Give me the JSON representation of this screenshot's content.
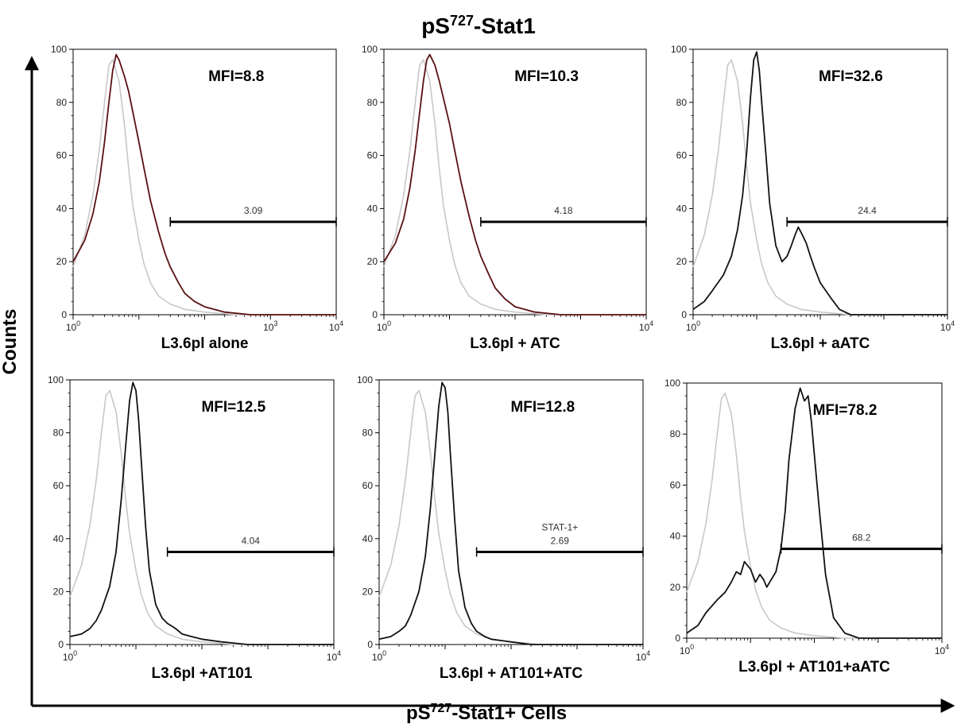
{
  "figure": {
    "title": "pS",
    "title_sup": "727",
    "title_suffix": "-Stat1",
    "y_label": "Counts",
    "x_label": "pS",
    "x_label_sup": "727",
    "x_label_suffix": "-Stat1+ Cells"
  },
  "colors": {
    "control": "#c8c8c8",
    "sample_dark_red": "#5a1010",
    "sample_black": "#111111",
    "gate": "#000000"
  },
  "chart_data": [
    {
      "type": "line",
      "panel_label": "L3.6pl alone",
      "mfi": "MFI=8.8",
      "gate": {
        "label": "3.09",
        "from": 30,
        "to": 10000,
        "y": 35
      },
      "sample_color": "dark-red",
      "x_scale": "log",
      "xlim": [
        1,
        10000
      ],
      "ylim": [
        0,
        100
      ],
      "x_ticks": [
        "10^0",
        "10^3",
        "10^4"
      ],
      "y_ticks": [
        0,
        20,
        40,
        60,
        80,
        100
      ],
      "series": [
        {
          "role": "control",
          "x": [
            1,
            1.5,
            2,
            2.5,
            3,
            3.5,
            4,
            5,
            6,
            7,
            8,
            10,
            12,
            15,
            20,
            30,
            50,
            100,
            300,
            1000,
            10000
          ],
          "y": [
            18,
            30,
            45,
            62,
            80,
            94,
            96,
            88,
            72,
            55,
            42,
            28,
            19,
            12,
            7,
            4,
            2,
            1,
            0,
            0,
            0
          ]
        },
        {
          "role": "sample",
          "x": [
            1,
            1.5,
            2,
            2.5,
            3,
            3.5,
            4,
            4.5,
            5,
            6,
            7,
            8,
            10,
            12,
            15,
            20,
            25,
            30,
            40,
            50,
            70,
            100,
            200,
            500,
            1000,
            10000
          ],
          "y": [
            20,
            28,
            38,
            50,
            65,
            80,
            92,
            98,
            96,
            90,
            84,
            77,
            65,
            55,
            43,
            31,
            23,
            18,
            12,
            8,
            5,
            3,
            1,
            0,
            0,
            0
          ]
        }
      ]
    },
    {
      "type": "line",
      "panel_label": "L3.6pl + ATC",
      "mfi": "MFI=10.3",
      "gate": {
        "label": "4.18",
        "from": 30,
        "to": 10000,
        "y": 35
      },
      "sample_color": "dark-red",
      "x_scale": "log",
      "xlim": [
        1,
        10000
      ],
      "ylim": [
        0,
        100
      ],
      "x_ticks": [
        "10^0",
        "10^4"
      ],
      "y_ticks": [
        0,
        20,
        40,
        60,
        80,
        100
      ],
      "series": [
        {
          "role": "control",
          "x": [
            1,
            1.5,
            2,
            2.5,
            3,
            3.5,
            4,
            5,
            6,
            7,
            8,
            10,
            12,
            15,
            20,
            30,
            50,
            100,
            300,
            1000,
            10000
          ],
          "y": [
            18,
            30,
            45,
            62,
            80,
            94,
            96,
            88,
            72,
            55,
            42,
            28,
            19,
            12,
            7,
            4,
            2,
            1,
            0,
            0,
            0
          ]
        },
        {
          "role": "sample",
          "x": [
            1,
            1.5,
            2,
            2.5,
            3,
            3.5,
            4,
            4.5,
            5,
            6,
            7,
            8,
            10,
            12,
            15,
            20,
            25,
            30,
            40,
            50,
            70,
            100,
            200,
            500,
            1000,
            10000
          ],
          "y": [
            20,
            27,
            36,
            48,
            62,
            76,
            88,
            96,
            98,
            94,
            88,
            82,
            72,
            62,
            50,
            37,
            28,
            22,
            15,
            10,
            6,
            3,
            1,
            0,
            0,
            0
          ]
        }
      ]
    },
    {
      "type": "line",
      "panel_label": "L3.6pl + aATC",
      "mfi": "MFI=32.6",
      "gate": {
        "label": "24.4",
        "from": 30,
        "to": 10000,
        "y": 35
      },
      "sample_color": "black",
      "x_scale": "log",
      "xlim": [
        1,
        10000
      ],
      "ylim": [
        0,
        100
      ],
      "x_ticks": [
        "10^0",
        "10^4"
      ],
      "y_ticks": [
        0,
        20,
        40,
        60,
        80,
        100
      ],
      "series": [
        {
          "role": "control",
          "x": [
            1,
            1.5,
            2,
            2.5,
            3,
            3.5,
            4,
            5,
            6,
            7,
            8,
            10,
            12,
            15,
            20,
            30,
            50,
            100,
            300,
            1000,
            10000
          ],
          "y": [
            18,
            30,
            45,
            62,
            80,
            94,
            96,
            88,
            72,
            55,
            42,
            28,
            19,
            12,
            7,
            4,
            2,
            1,
            0,
            0,
            0
          ]
        },
        {
          "role": "sample",
          "x": [
            1,
            1.5,
            2,
            3,
            4,
            5,
            6,
            7,
            8,
            9,
            10,
            11,
            12,
            14,
            16,
            20,
            25,
            30,
            35,
            40,
            45,
            50,
            60,
            70,
            80,
            100,
            150,
            200,
            300,
            1000,
            10000
          ],
          "y": [
            2,
            5,
            9,
            15,
            22,
            32,
            45,
            62,
            82,
            96,
            99,
            92,
            80,
            60,
            42,
            26,
            20,
            22,
            26,
            30,
            33,
            31,
            27,
            22,
            18,
            12,
            6,
            2,
            0,
            0,
            0
          ]
        }
      ]
    },
    {
      "type": "line",
      "panel_label": "L3.6pl +AT101",
      "mfi": "MFI=12.5",
      "gate": {
        "label": "4.04",
        "from": 30,
        "to": 10000,
        "y": 35
      },
      "sample_color": "black",
      "x_scale": "log",
      "xlim": [
        1,
        10000
      ],
      "ylim": [
        0,
        100
      ],
      "x_ticks": [
        "10^0",
        "10^4"
      ],
      "y_ticks": [
        0,
        20,
        40,
        60,
        80,
        100
      ],
      "series": [
        {
          "role": "control",
          "x": [
            1,
            1.5,
            2,
            2.5,
            3,
            3.5,
            4,
            5,
            6,
            7,
            8,
            10,
            12,
            15,
            20,
            30,
            50,
            100,
            300,
            1000,
            10000
          ],
          "y": [
            18,
            30,
            45,
            62,
            80,
            94,
            96,
            88,
            72,
            55,
            42,
            28,
            19,
            12,
            7,
            4,
            2,
            1,
            0,
            0,
            0
          ]
        },
        {
          "role": "sample",
          "x": [
            1,
            1.5,
            2,
            2.5,
            3,
            4,
            5,
            6,
            7,
            8,
            9,
            10,
            11,
            12,
            14,
            16,
            20,
            25,
            30,
            40,
            50,
            70,
            100,
            200,
            500,
            1000,
            10000
          ],
          "y": [
            3,
            4,
            6,
            9,
            13,
            22,
            35,
            55,
            75,
            92,
            99,
            96,
            85,
            70,
            45,
            28,
            15,
            10,
            8,
            6,
            4,
            3,
            2,
            1,
            0,
            0,
            0
          ]
        }
      ]
    },
    {
      "type": "line",
      "panel_label": "L3.6pl + AT101+ATC",
      "mfi": "MFI=12.8",
      "gate": {
        "label": "2.69",
        "label_top": "STAT-1+",
        "from": 30,
        "to": 10000,
        "y": 35
      },
      "sample_color": "black",
      "x_scale": "log",
      "xlim": [
        1,
        10000
      ],
      "ylim": [
        0,
        100
      ],
      "x_ticks": [
        "10^0",
        "10^4"
      ],
      "y_ticks": [
        0,
        20,
        40,
        60,
        80,
        100
      ],
      "series": [
        {
          "role": "control",
          "x": [
            1,
            1.5,
            2,
            2.5,
            3,
            3.5,
            4,
            5,
            6,
            7,
            8,
            10,
            12,
            15,
            20,
            30,
            50,
            100,
            300,
            1000,
            10000
          ],
          "y": [
            18,
            30,
            45,
            62,
            80,
            94,
            96,
            88,
            72,
            55,
            42,
            28,
            19,
            12,
            7,
            4,
            2,
            1,
            0,
            0,
            0
          ]
        },
        {
          "role": "sample",
          "x": [
            1,
            1.5,
            2,
            2.5,
            3,
            4,
            5,
            6,
            7,
            8,
            9,
            10,
            11,
            12,
            14,
            16,
            20,
            25,
            30,
            40,
            50,
            100,
            200,
            1000,
            10000
          ],
          "y": [
            2,
            3,
            5,
            7,
            11,
            20,
            33,
            52,
            72,
            90,
            99,
            97,
            88,
            72,
            47,
            28,
            14,
            8,
            5,
            3,
            2,
            1,
            0,
            0,
            0
          ]
        }
      ]
    },
    {
      "type": "line",
      "panel_label": "L3.6pl + AT101+aATC",
      "mfi": "MFI=78.2",
      "gate": {
        "label": "68.2",
        "from": 30,
        "to": 10000,
        "y": 35
      },
      "sample_color": "black",
      "x_scale": "log",
      "xlim": [
        1,
        10000
      ],
      "ylim": [
        0,
        100
      ],
      "x_ticks": [
        "10^0",
        "10^4"
      ],
      "y_ticks": [
        0,
        20,
        40,
        60,
        80,
        100
      ],
      "series": [
        {
          "role": "control",
          "x": [
            1,
            1.5,
            2,
            2.5,
            3,
            3.5,
            4,
            5,
            6,
            7,
            8,
            10,
            12,
            15,
            20,
            30,
            50,
            100,
            300,
            1000,
            10000
          ],
          "y": [
            18,
            30,
            45,
            62,
            80,
            94,
            96,
            88,
            72,
            55,
            42,
            28,
            19,
            12,
            7,
            4,
            2,
            1,
            0,
            0,
            0
          ]
        },
        {
          "role": "sample",
          "x": [
            1,
            1.5,
            2,
            3,
            4,
            5,
            6,
            7,
            8,
            10,
            12,
            14,
            16,
            18,
            20,
            25,
            30,
            35,
            40,
            50,
            60,
            70,
            80,
            90,
            100,
            120,
            150,
            200,
            300,
            500,
            1000,
            10000
          ],
          "y": [
            2,
            5,
            10,
            15,
            18,
            22,
            26,
            25,
            30,
            27,
            22,
            25,
            23,
            20,
            22,
            26,
            35,
            50,
            70,
            90,
            98,
            93,
            95,
            85,
            72,
            50,
            25,
            8,
            2,
            0,
            0,
            0
          ]
        }
      ]
    }
  ]
}
